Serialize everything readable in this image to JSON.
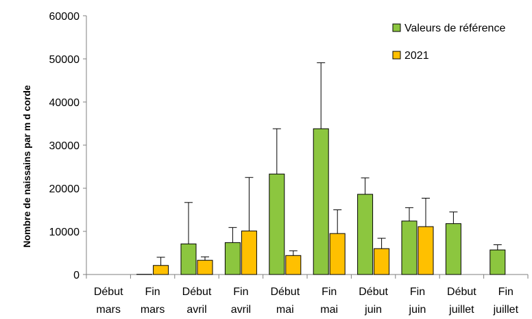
{
  "chart_data": {
    "type": "bar",
    "categories": [
      [
        "Début",
        "mars"
      ],
      [
        "Fin",
        "mars"
      ],
      [
        "Début",
        "avril"
      ],
      [
        "Fin",
        "avril"
      ],
      [
        "Début",
        "mai"
      ],
      [
        "Fin",
        "mai"
      ],
      [
        "Début",
        "juin"
      ],
      [
        "Fin",
        "juin"
      ],
      [
        "Début",
        "juillet"
      ],
      [
        "Fin",
        "juillet"
      ]
    ],
    "series": [
      {
        "name": "Valeurs de référence",
        "color": "#8cc63f",
        "values": [
          0,
          50,
          7100,
          7400,
          23300,
          33800,
          18600,
          12400,
          11800,
          5700
        ],
        "error": [
          0,
          0,
          9600,
          3500,
          10500,
          15300,
          3800,
          3100,
          2700,
          1200
        ]
      },
      {
        "name": "2021",
        "color": "#ffc000",
        "values": [
          null,
          2100,
          3300,
          10100,
          4400,
          9500,
          6000,
          11100,
          null,
          null
        ],
        "error": [
          null,
          1900,
          800,
          12400,
          1100,
          5500,
          2400,
          6600,
          null,
          null
        ]
      }
    ],
    "yticks": [
      "0",
      "10000",
      "20000",
      "30000",
      "40000",
      "50000",
      "60000"
    ],
    "ylim": [
      0,
      60000
    ],
    "ylabel": "Nombre de naissains par m d corde",
    "xlabel": "",
    "title": "",
    "legend_position": "top-right",
    "grid": false
  }
}
